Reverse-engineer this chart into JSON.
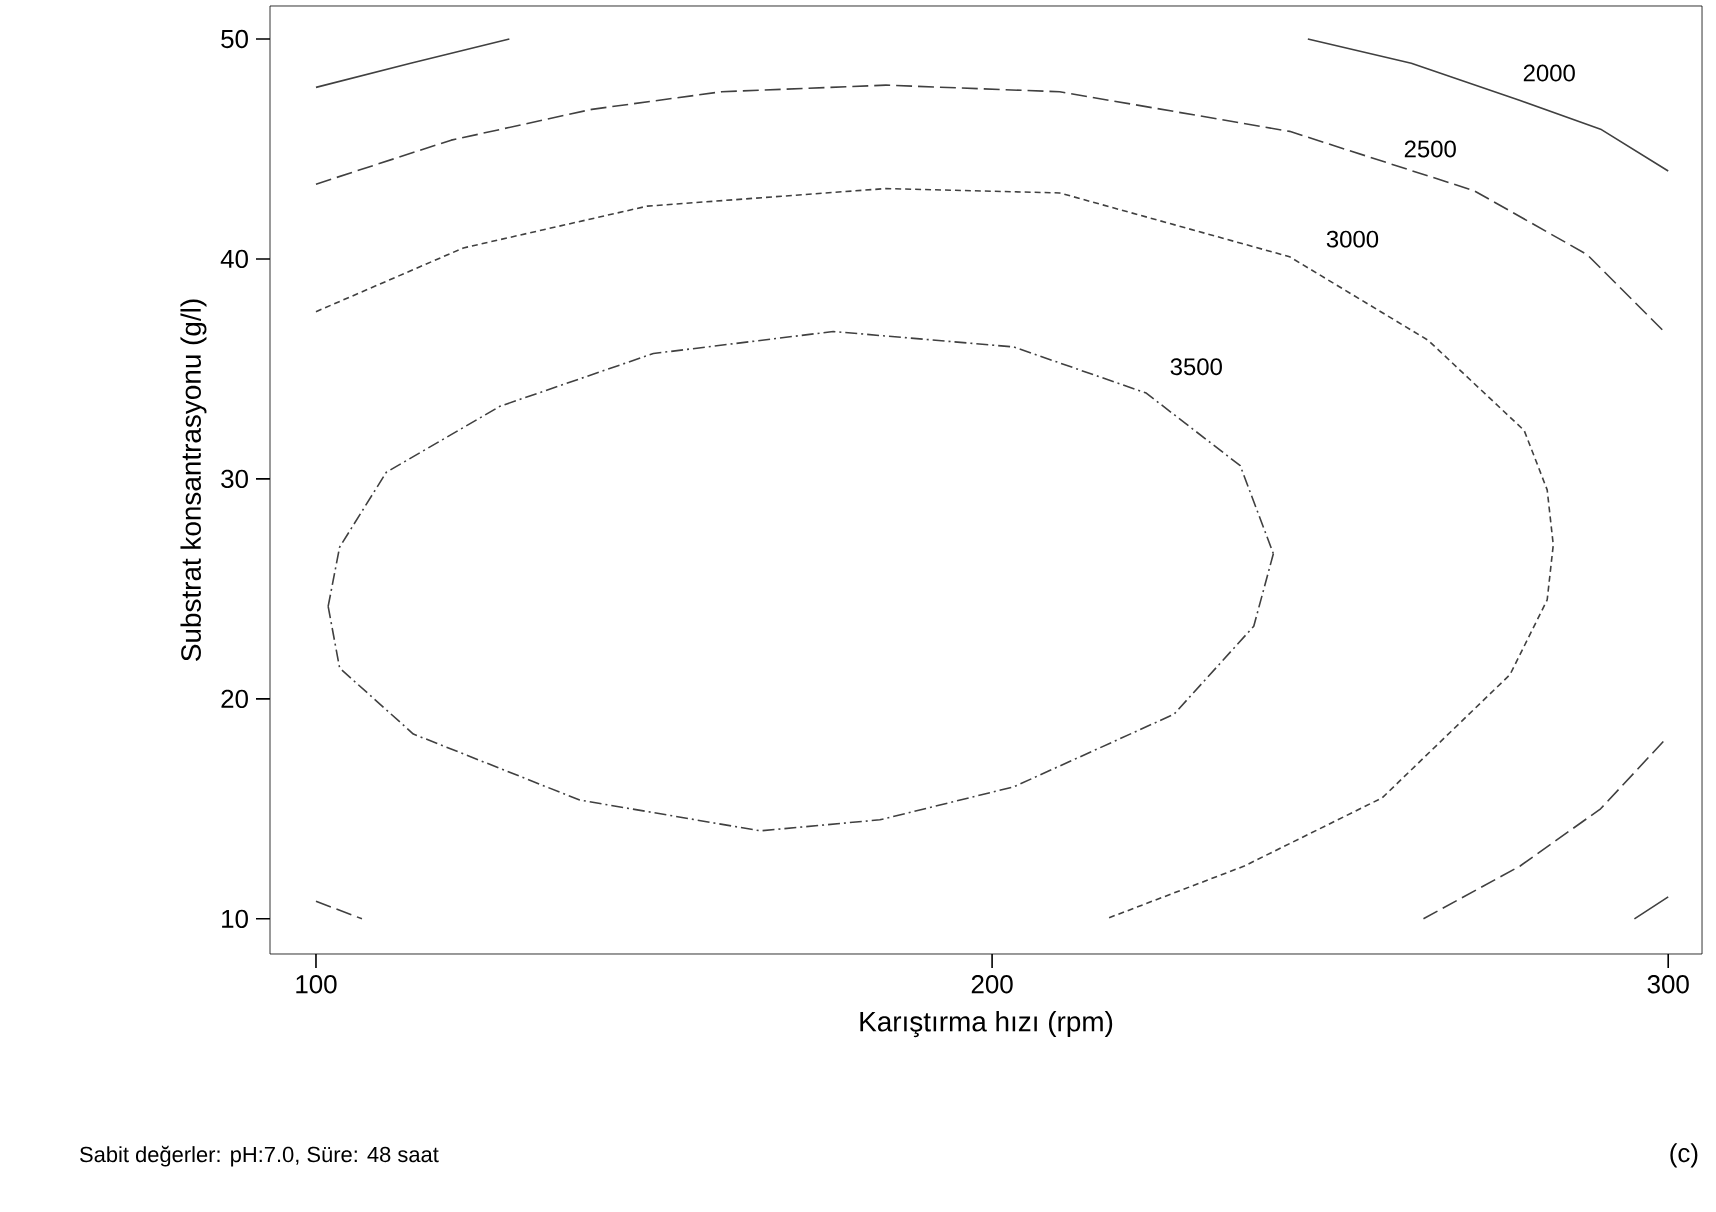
{
  "chart_data": {
    "type": "line",
    "xlabel": "Karıştırma hızı (rpm)",
    "ylabel": "Substrat konsantrasyonu (g/l)",
    "xlim": [
      93.2,
      305
    ],
    "ylim": [
      8.4,
      51.5
    ],
    "xticks": [
      100,
      200,
      300
    ],
    "yticks": [
      10,
      20,
      30,
      40,
      50
    ],
    "grid": false,
    "legend": false,
    "marker": "none",
    "series": [
      {
        "color": "#404040",
        "line_style": "solid",
        "x": [
          100,
          114,
          128.6,
          null,
          246.7,
          262,
          278.1,
          290,
          300,
          null,
          295,
          300
        ],
        "values": [
          47.8,
          48.9,
          50,
          null,
          50,
          48.9,
          47.2,
          45.9,
          44.0,
          null,
          10,
          11
        ]
      },
      {
        "color": "#404040",
        "line_style": "dashed",
        "x": [
          100,
          120,
          140.8,
          160,
          184.3,
          210,
          244,
          271.3,
          288,
          299.7,
          null,
          263.8,
          278.1,
          290,
          299.7,
          null,
          100,
          106.8
        ],
        "values": [
          43.4,
          45.4,
          46.8,
          47.6,
          47.9,
          47.6,
          45.8,
          43.1,
          40.2,
          36.6,
          null,
          10,
          12.4,
          15,
          18.2,
          null,
          10.8,
          10
        ]
      },
      {
        "color": "#404040",
        "line_style": "dotted",
        "x": [
          100,
          121.8,
          149,
          184.3,
          210,
          244,
          264.5,
          278.7,
          282.1,
          283,
          282.1,
          276.6,
          257.7,
          237.3,
          216.9
        ],
        "values": [
          37.6,
          40.5,
          42.4,
          43.2,
          43.0,
          40.1,
          36.3,
          32.2,
          29.5,
          27,
          24.5,
          21.1,
          15.5,
          12.4,
          10
        ]
      },
      {
        "color": "#404040",
        "line_style": "dashdot",
        "x": [
          101.8,
          103.5,
          110.4,
          127.2,
          149.9,
          176.5,
          203.2,
          222.8,
          236.7,
          241.6,
          null,
          101.8,
          103.5,
          114.4,
          139,
          165.7,
          183.4,
          203.2,
          226.9,
          238.7,
          241.6
        ],
        "values": [
          24.2,
          26.9,
          30.3,
          33.3,
          35.7,
          36.7,
          36.0,
          33.9,
          30.6,
          26.6,
          null,
          24.2,
          21.4,
          18.4,
          15.4,
          14.0,
          14.5,
          16.0,
          19.3,
          23.3,
          26.6
        ]
      }
    ],
    "annotations": [
      {
        "text": "2000",
        "x": 282.4,
        "y": 48.45
      },
      {
        "text": "2500",
        "x": 264.8,
        "y": 45.0
      },
      {
        "text": "3000",
        "x": 253.3,
        "y": 40.9
      },
      {
        "text": "3500",
        "x": 230.2,
        "y": 35.1
      },
      "Sabit değerler: pH:7.0, Süre: 48 saat",
      "(c)"
    ]
  }
}
